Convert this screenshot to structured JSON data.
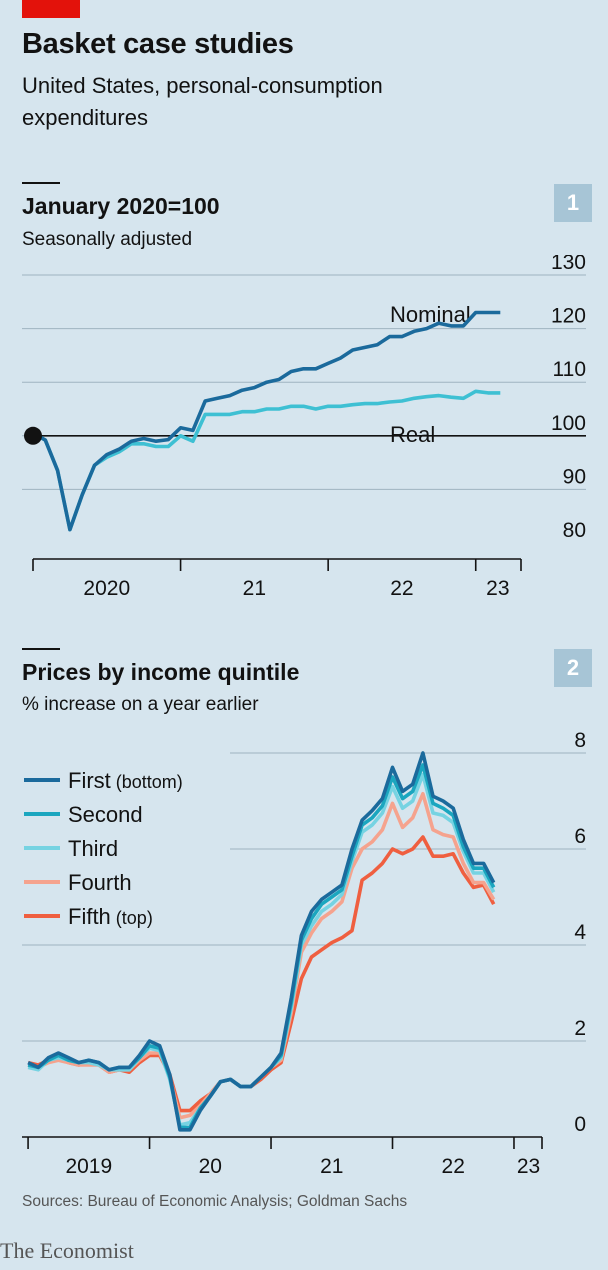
{
  "headline": "Basket case studies",
  "subhead": "United States, personal-consumption expenditures",
  "source": "Sources: Bureau of Economic Analysis; Goldman Sachs",
  "logo": "The Economist",
  "colors": {
    "background": "#d6e5ee",
    "brand_red": "#e3120b",
    "nominal": "#1b6a9c",
    "real": "#3ec0d3",
    "first": "#1b6a9c",
    "second": "#1ba6bf",
    "third": "#76d3e2",
    "fourth": "#f5a38e",
    "fifth": "#ef5f40"
  },
  "panel1": {
    "badge": "1",
    "title": "January 2020=100",
    "subtitle": "Seasonally adjusted",
    "chart_data": {
      "type": "line",
      "x_axis": "monthly, Jan 2020 to Mar 2023",
      "xlim": [
        2020.0,
        2023.3
      ],
      "ylim": [
        80,
        130
      ],
      "y_ticks": [
        80,
        90,
        100,
        110,
        120,
        130
      ],
      "x_tick_marks": [
        2020,
        2021,
        2022,
        2023
      ],
      "x_tick_labels": [
        {
          "label": "2020",
          "at": 2020.5
        },
        {
          "label": "21",
          "at": 2021.5
        },
        {
          "label": "22",
          "at": 2022.5
        },
        {
          "label": "23",
          "at": 2023.15
        }
      ],
      "baseline": 100,
      "marker": {
        "x": 2020.0,
        "y": 100
      },
      "series": [
        {
          "name": "Nominal",
          "color": "#1b6a9c",
          "x_start": 2020.0,
          "step": 0.08333,
          "values": [
            100.5,
            99.2,
            93.5,
            82.5,
            89,
            94.5,
            96.5,
            97.5,
            99,
            99.5,
            99,
            99.3,
            101.5,
            101,
            106.5,
            107,
            107.5,
            108.5,
            109,
            110,
            110.5,
            112,
            112.5,
            112.5,
            113.5,
            114.5,
            116,
            116.5,
            117,
            118.5,
            118.5,
            119.5,
            120,
            121,
            120.5,
            120.5,
            123,
            123,
            123
          ]
        },
        {
          "name": "Real",
          "color": "#3ec0d3",
          "x_start": 2020.0,
          "step": 0.08333,
          "values": [
            100.5,
            99.2,
            93.5,
            82.5,
            89,
            94.5,
            96,
            97,
            98.5,
            98.5,
            98,
            98,
            100,
            99,
            104,
            104,
            104,
            104.5,
            104.5,
            105,
            105,
            105.5,
            105.5,
            105,
            105.5,
            105.5,
            105.8,
            106,
            106,
            106.3,
            106.5,
            107,
            107.3,
            107.5,
            107.2,
            107,
            108.3,
            108,
            108
          ]
        }
      ]
    }
  },
  "panel2": {
    "badge": "2",
    "title": "Prices by income quintile",
    "subtitle": "% increase on a year earlier",
    "legend": [
      {
        "label": "First",
        "suffix": "(bottom)",
        "color": "#1b6a9c"
      },
      {
        "label": "Second",
        "suffix": "",
        "color": "#1ba6bf"
      },
      {
        "label": "Third",
        "suffix": "",
        "color": "#76d3e2"
      },
      {
        "label": "Fourth",
        "suffix": "",
        "color": "#f5a38e"
      },
      {
        "label": "Fifth",
        "suffix": "(top)",
        "color": "#ef5f40"
      }
    ],
    "chart_data": {
      "type": "line",
      "x_axis": "monthly, Jan 2019 to Feb 2023",
      "xlim": [
        2018.95,
        2023.42
      ],
      "ylim": [
        0,
        8
      ],
      "y_ticks": [
        0,
        2,
        4,
        6,
        8
      ],
      "x_tick_marks": [
        2019,
        2020,
        2021,
        2022,
        2023
      ],
      "x_tick_labels": [
        {
          "label": "2019",
          "at": 2019.5
        },
        {
          "label": "20",
          "at": 2020.5
        },
        {
          "label": "21",
          "at": 2021.5
        },
        {
          "label": "22",
          "at": 2022.5
        },
        {
          "label": "23",
          "at": 2023.12
        }
      ],
      "series": [
        {
          "name": "First",
          "color": "#1b6a9c",
          "x_start": 2019.0,
          "step": 0.08333,
          "values": [
            1.55,
            1.45,
            1.65,
            1.75,
            1.65,
            1.55,
            1.6,
            1.55,
            1.4,
            1.45,
            1.45,
            1.7,
            2.0,
            1.9,
            1.3,
            0.15,
            0.15,
            0.55,
            0.85,
            1.15,
            1.2,
            1.05,
            1.05,
            1.25,
            1.45,
            1.75,
            2.9,
            4.2,
            4.7,
            4.95,
            5.1,
            5.25,
            6.0,
            6.6,
            6.8,
            7.05,
            7.7,
            7.2,
            7.35,
            8.0,
            7.1,
            7.0,
            6.85,
            6.2,
            5.7,
            5.7,
            5.3
          ]
        },
        {
          "name": "Second",
          "color": "#1ba6bf",
          "x_start": 2019.0,
          "step": 0.08333,
          "values": [
            1.5,
            1.45,
            1.6,
            1.7,
            1.6,
            1.55,
            1.6,
            1.55,
            1.4,
            1.45,
            1.45,
            1.65,
            1.9,
            1.85,
            1.25,
            0.2,
            0.2,
            0.6,
            0.85,
            1.15,
            1.2,
            1.05,
            1.05,
            1.25,
            1.45,
            1.7,
            2.8,
            4.1,
            4.55,
            4.85,
            5.0,
            5.15,
            5.85,
            6.5,
            6.65,
            6.9,
            7.5,
            7.05,
            7.2,
            7.75,
            6.95,
            6.85,
            6.7,
            6.05,
            5.6,
            5.6,
            5.2
          ]
        },
        {
          "name": "Third",
          "color": "#76d3e2",
          "x_start": 2019.0,
          "step": 0.08333,
          "values": [
            1.45,
            1.4,
            1.6,
            1.65,
            1.6,
            1.55,
            1.55,
            1.5,
            1.4,
            1.4,
            1.4,
            1.65,
            1.85,
            1.8,
            1.2,
            0.25,
            0.3,
            0.6,
            0.85,
            1.15,
            1.2,
            1.05,
            1.05,
            1.25,
            1.45,
            1.65,
            2.7,
            4.0,
            4.4,
            4.7,
            4.85,
            5.05,
            5.75,
            6.35,
            6.5,
            6.75,
            7.3,
            6.85,
            7.0,
            7.55,
            6.75,
            6.7,
            6.55,
            5.95,
            5.5,
            5.5,
            5.1
          ]
        },
        {
          "name": "Fourth",
          "color": "#f5a38e",
          "x_start": 2019.0,
          "step": 0.08333,
          "values": [
            1.5,
            1.45,
            1.55,
            1.6,
            1.55,
            1.5,
            1.5,
            1.5,
            1.35,
            1.4,
            1.4,
            1.6,
            1.75,
            1.75,
            1.25,
            0.4,
            0.45,
            0.65,
            0.9,
            1.15,
            1.2,
            1.05,
            1.05,
            1.25,
            1.45,
            1.6,
            2.6,
            3.85,
            4.25,
            4.55,
            4.7,
            4.9,
            5.6,
            6.0,
            6.15,
            6.4,
            6.95,
            6.45,
            6.65,
            7.15,
            6.4,
            6.3,
            6.25,
            5.7,
            5.3,
            5.3,
            4.95
          ]
        },
        {
          "name": "Fifth",
          "color": "#ef5f40",
          "x_start": 2019.0,
          "step": 0.08333,
          "values": [
            1.55,
            1.5,
            1.6,
            1.65,
            1.55,
            1.5,
            1.55,
            1.5,
            1.35,
            1.4,
            1.35,
            1.55,
            1.7,
            1.7,
            1.3,
            0.55,
            0.55,
            0.75,
            0.9,
            1.15,
            1.2,
            1.05,
            1.05,
            1.2,
            1.4,
            1.55,
            2.4,
            3.3,
            3.75,
            3.9,
            4.05,
            4.15,
            4.3,
            5.35,
            5.5,
            5.7,
            6.0,
            5.9,
            6.0,
            6.25,
            5.85,
            5.85,
            5.9,
            5.5,
            5.2,
            5.25,
            4.85
          ]
        }
      ]
    }
  }
}
